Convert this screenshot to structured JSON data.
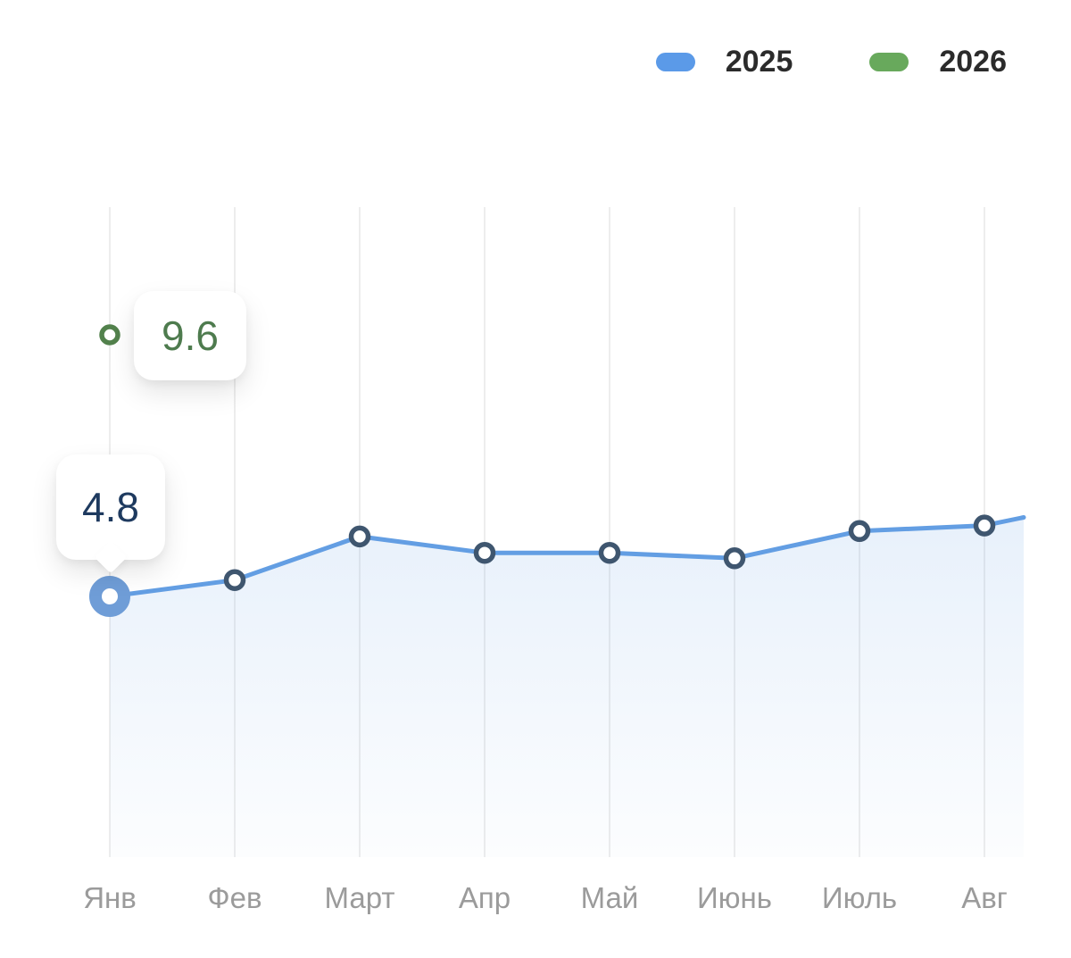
{
  "legend": {
    "items": [
      {
        "label": "2025",
        "color": "#5b9ae8"
      },
      {
        "label": "2026",
        "color": "#68a95c"
      }
    ]
  },
  "tooltips": {
    "green": {
      "value": "9.6",
      "text_color": "#4e7b4e"
    },
    "blue": {
      "value": "4.8",
      "text_color": "#1e3a5f"
    }
  },
  "chart_data": {
    "type": "line",
    "categories": [
      "Янв",
      "Фев",
      "Март",
      "Апр",
      "Май",
      "Июнь",
      "Июль",
      "Авг"
    ],
    "series": [
      {
        "name": "2025",
        "line_color": "#639ee3",
        "point_stroke": "#3f566f",
        "active_point_color": "#6f9dd7",
        "area_fill_color": "#639ee3",
        "values": [
          4.8,
          5.1,
          5.9,
          5.6,
          5.6,
          5.5,
          6.0,
          6.1
        ],
        "active_index": 0,
        "extends_past_last_category": true,
        "extension_value": 6.25
      },
      {
        "name": "2026",
        "line_color": "#68a95c",
        "point_stroke": "#52814c",
        "values": [
          9.6,
          null,
          null,
          null,
          null,
          null,
          null,
          null
        ]
      }
    ],
    "annotations": [
      {
        "series": "2026",
        "category": "Янв",
        "value": 9.6
      },
      {
        "series": "2025",
        "category": "Янв",
        "value": 4.8
      }
    ],
    "grid": {
      "vertical": true,
      "horizontal": false,
      "color": "#ededed"
    },
    "legend_position": "top-right",
    "x_axis": {
      "label_color": "#9b9b9b"
    },
    "y_axis": {
      "visible": false
    }
  }
}
